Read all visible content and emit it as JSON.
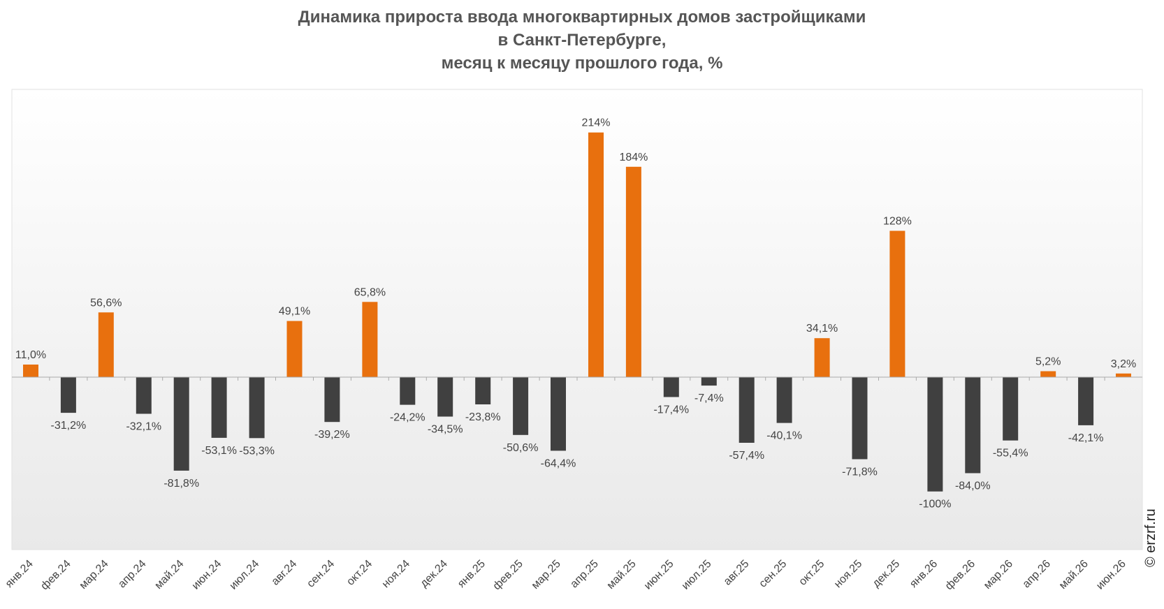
{
  "chart_data": {
    "type": "bar",
    "title": [
      "Динамика прироста ввода многоквартирных домов застройщиками",
      "в Санкт-Петербурге,",
      "месяц к месяцу прошлого года, %"
    ],
    "categories": [
      "янв.24",
      "фев.24",
      "мар.24",
      "апр.24",
      "май.24",
      "июн.24",
      "июл.24",
      "авг.24",
      "сен.24",
      "окт.24",
      "ноя.24",
      "дек.24",
      "янв.25",
      "фев.25",
      "мар.25",
      "апр.25",
      "май.25",
      "июн.25",
      "июл.25",
      "авг.25",
      "сен.25",
      "окт.25",
      "ноя.25",
      "дек.25",
      "янв.26",
      "фев.26",
      "мар.26",
      "апр.26",
      "май.26",
      "июн.26"
    ],
    "values": [
      11.0,
      -31.2,
      56.6,
      -32.1,
      -81.8,
      -53.1,
      -53.3,
      49.1,
      -39.2,
      65.8,
      -24.2,
      -34.5,
      -23.8,
      -50.6,
      -64.4,
      214,
      184,
      -17.4,
      -7.4,
      -57.4,
      -40.1,
      34.1,
      -71.8,
      128,
      -100,
      -84.0,
      -55.4,
      5.2,
      -42.1,
      3.2
    ],
    "data_labels": [
      "11,0%",
      "-31,2%",
      "56,6%",
      "-32,1%",
      "-81,8%",
      "-53,1%",
      "-53,3%",
      "49,1%",
      "-39,2%",
      "65,8%",
      "-24,2%",
      "-34,5%",
      "-23,8%",
      "-50,6%",
      "-64,4%",
      "214%",
      "184%",
      "-17,4%",
      "-7,4%",
      "-57,4%",
      "-40,1%",
      "34,1%",
      "-71,8%",
      "128%",
      "-100%",
      "-84,0%",
      "-55,4%",
      "5,2%",
      "-42,1%",
      "3,2%"
    ],
    "ylim": [
      -150,
      250
    ],
    "grid": false,
    "legend": "none",
    "colors": {
      "positive": "#E8700E",
      "negative": "#404040",
      "label_text": "#444444",
      "axis": "#AAAAAA",
      "plot_bg_top": "#FFFFFF",
      "plot_bg_bottom": "#E9E9E9"
    }
  },
  "watermark": "© erzrf.ru"
}
